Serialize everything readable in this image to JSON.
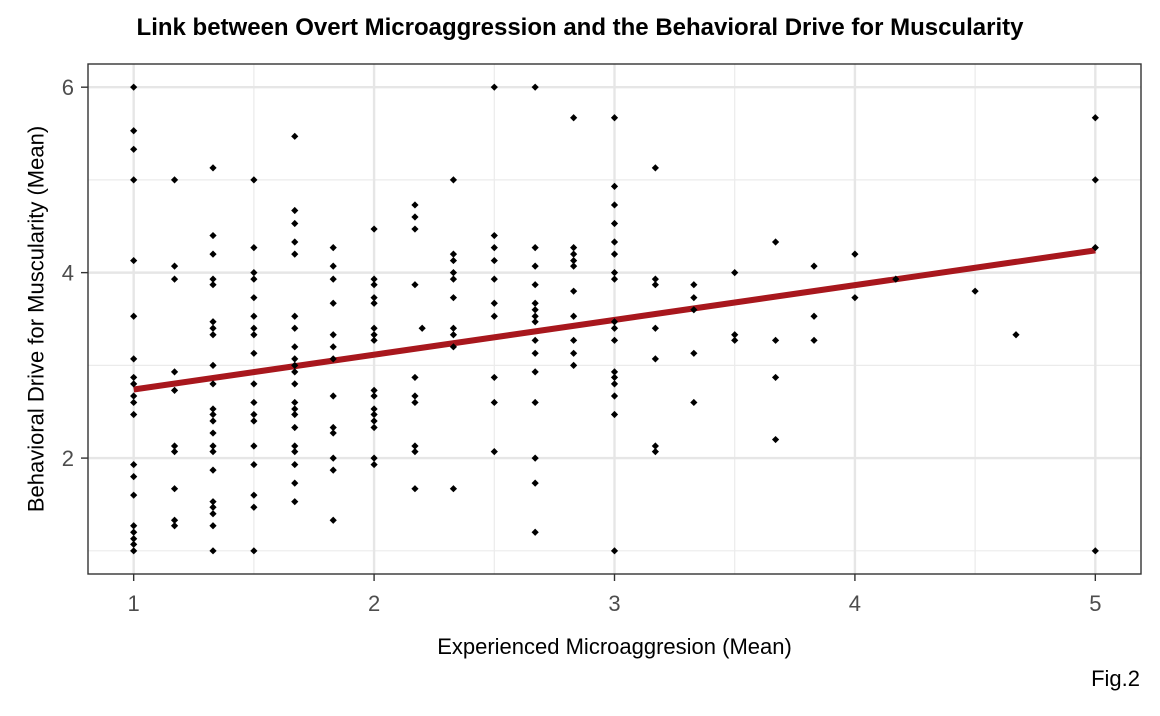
{
  "chart_data": {
    "type": "scatter",
    "title": "Link between Overt Microaggression and the Behavioral Drive for Muscularity",
    "xlabel": "Experienced Microaggresion (Mean)",
    "ylabel": "Behavioral Drive for Muscularity (Mean)",
    "caption": "Fig.2",
    "xlim": [
      0.81,
      5.19
    ],
    "ylim": [
      0.75,
      6.25
    ],
    "xticks": [
      1,
      2,
      3,
      4,
      5
    ],
    "yticks": [
      2,
      4,
      6
    ],
    "xtick_labels": [
      "1",
      "2",
      "3",
      "4",
      "5"
    ],
    "ytick_labels": [
      "2",
      "4",
      "6"
    ],
    "grid": true,
    "point_color": "#000000",
    "line_color": "#a8171d",
    "fit_line": {
      "x": [
        1,
        5
      ],
      "y": [
        2.74,
        4.24
      ]
    },
    "points": [
      [
        1,
        6
      ],
      [
        1,
        5.53
      ],
      [
        1,
        5.33
      ],
      [
        1,
        5
      ],
      [
        1,
        4.13
      ],
      [
        1,
        3.53
      ],
      [
        1,
        3.07
      ],
      [
        1,
        2.87
      ],
      [
        1,
        2.8
      ],
      [
        1,
        2.67
      ],
      [
        1,
        2.6
      ],
      [
        1,
        2.47
      ],
      [
        1,
        1.93
      ],
      [
        1,
        1.8
      ],
      [
        1,
        1.6
      ],
      [
        1,
        1.27
      ],
      [
        1,
        1.2
      ],
      [
        1,
        1.13
      ],
      [
        1,
        1.07
      ],
      [
        1,
        1
      ],
      [
        1.17,
        5
      ],
      [
        1.17,
        4.07
      ],
      [
        1.17,
        3.93
      ],
      [
        1.17,
        2.93
      ],
      [
        1.17,
        2.73
      ],
      [
        1.17,
        2.13
      ],
      [
        1.17,
        2.07
      ],
      [
        1.17,
        1.67
      ],
      [
        1.17,
        1.33
      ],
      [
        1.17,
        1.27
      ],
      [
        1.33,
        5.13
      ],
      [
        1.33,
        4.4
      ],
      [
        1.33,
        4.2
      ],
      [
        1.33,
        3.93
      ],
      [
        1.33,
        3.87
      ],
      [
        1.33,
        3.47
      ],
      [
        1.33,
        3.4
      ],
      [
        1.33,
        3.33
      ],
      [
        1.33,
        3
      ],
      [
        1.33,
        2.8
      ],
      [
        1.33,
        2.53
      ],
      [
        1.33,
        2.47
      ],
      [
        1.33,
        2.4
      ],
      [
        1.33,
        2.27
      ],
      [
        1.33,
        2.13
      ],
      [
        1.33,
        2.07
      ],
      [
        1.33,
        1.87
      ],
      [
        1.33,
        1.53
      ],
      [
        1.33,
        1.47
      ],
      [
        1.33,
        1.4
      ],
      [
        1.33,
        1.27
      ],
      [
        1.33,
        1
      ],
      [
        1.5,
        5
      ],
      [
        1.5,
        4.27
      ],
      [
        1.5,
        4
      ],
      [
        1.5,
        3.93
      ],
      [
        1.5,
        3.73
      ],
      [
        1.5,
        3.53
      ],
      [
        1.5,
        3.4
      ],
      [
        1.5,
        3.33
      ],
      [
        1.5,
        3.13
      ],
      [
        1.5,
        2.8
      ],
      [
        1.5,
        2.6
      ],
      [
        1.5,
        2.47
      ],
      [
        1.5,
        2.4
      ],
      [
        1.5,
        2.13
      ],
      [
        1.5,
        1.93
      ],
      [
        1.5,
        1.6
      ],
      [
        1.5,
        1.47
      ],
      [
        1.5,
        1
      ],
      [
        1.67,
        5.47
      ],
      [
        1.67,
        4.67
      ],
      [
        1.67,
        4.53
      ],
      [
        1.67,
        4.33
      ],
      [
        1.67,
        4.2
      ],
      [
        1.67,
        3.53
      ],
      [
        1.67,
        3.4
      ],
      [
        1.67,
        3.2
      ],
      [
        1.67,
        3.07
      ],
      [
        1.67,
        3
      ],
      [
        1.67,
        2.93
      ],
      [
        1.67,
        2.8
      ],
      [
        1.67,
        2.6
      ],
      [
        1.67,
        2.53
      ],
      [
        1.67,
        2.47
      ],
      [
        1.67,
        2.33
      ],
      [
        1.67,
        2.13
      ],
      [
        1.67,
        2.07
      ],
      [
        1.67,
        1.93
      ],
      [
        1.67,
        1.73
      ],
      [
        1.67,
        1.53
      ],
      [
        1.83,
        4.27
      ],
      [
        1.83,
        4.07
      ],
      [
        1.83,
        3.93
      ],
      [
        1.83,
        3.67
      ],
      [
        1.83,
        3.33
      ],
      [
        1.83,
        3.2
      ],
      [
        1.83,
        3.07
      ],
      [
        1.83,
        2.67
      ],
      [
        1.83,
        2.33
      ],
      [
        1.83,
        2.27
      ],
      [
        1.83,
        2
      ],
      [
        1.83,
        1.87
      ],
      [
        1.83,
        1.33
      ],
      [
        2,
        4.47
      ],
      [
        2,
        3.93
      ],
      [
        2,
        3.87
      ],
      [
        2,
        3.73
      ],
      [
        2,
        3.67
      ],
      [
        2,
        3.4
      ],
      [
        2,
        3.33
      ],
      [
        2,
        3.27
      ],
      [
        2,
        2.73
      ],
      [
        2,
        2.67
      ],
      [
        2,
        2.53
      ],
      [
        2,
        2.47
      ],
      [
        2,
        2.4
      ],
      [
        2,
        2.33
      ],
      [
        2,
        2
      ],
      [
        2,
        1.93
      ],
      [
        2.17,
        4.73
      ],
      [
        2.17,
        4.6
      ],
      [
        2.17,
        4.47
      ],
      [
        2.17,
        3.87
      ],
      [
        2.17,
        2.87
      ],
      [
        2.17,
        2.67
      ],
      [
        2.17,
        2.6
      ],
      [
        2.17,
        2.13
      ],
      [
        2.17,
        2.07
      ],
      [
        2.17,
        1.67
      ],
      [
        2.2,
        3.4
      ],
      [
        2.33,
        5
      ],
      [
        2.33,
        4.2
      ],
      [
        2.33,
        4.13
      ],
      [
        2.33,
        4
      ],
      [
        2.33,
        3.93
      ],
      [
        2.33,
        3.73
      ],
      [
        2.33,
        3.4
      ],
      [
        2.33,
        3.33
      ],
      [
        2.33,
        3.2
      ],
      [
        2.33,
        1.67
      ],
      [
        2.5,
        6
      ],
      [
        2.5,
        4.4
      ],
      [
        2.5,
        4.27
      ],
      [
        2.5,
        4.13
      ],
      [
        2.5,
        3.93
      ],
      [
        2.5,
        3.67
      ],
      [
        2.5,
        3.53
      ],
      [
        2.5,
        2.87
      ],
      [
        2.5,
        2.6
      ],
      [
        2.5,
        2.07
      ],
      [
        2.67,
        6
      ],
      [
        2.67,
        4.27
      ],
      [
        2.67,
        4.07
      ],
      [
        2.67,
        3.87
      ],
      [
        2.67,
        3.67
      ],
      [
        2.67,
        3.6
      ],
      [
        2.67,
        3.53
      ],
      [
        2.67,
        3.47
      ],
      [
        2.67,
        3.27
      ],
      [
        2.67,
        3.13
      ],
      [
        2.67,
        2.93
      ],
      [
        2.67,
        2.6
      ],
      [
        2.67,
        2
      ],
      [
        2.67,
        1.73
      ],
      [
        2.67,
        1.2
      ],
      [
        2.83,
        5.67
      ],
      [
        2.83,
        4.27
      ],
      [
        2.83,
        4.2
      ],
      [
        2.83,
        4.13
      ],
      [
        2.83,
        4.07
      ],
      [
        2.83,
        3.8
      ],
      [
        2.83,
        3.53
      ],
      [
        2.83,
        3.27
      ],
      [
        2.83,
        3.13
      ],
      [
        2.83,
        3
      ],
      [
        3,
        5.67
      ],
      [
        3,
        4.93
      ],
      [
        3,
        4.73
      ],
      [
        3,
        4.53
      ],
      [
        3,
        4.33
      ],
      [
        3,
        4.2
      ],
      [
        3,
        4
      ],
      [
        3,
        3.93
      ],
      [
        3,
        3.47
      ],
      [
        3,
        3.4
      ],
      [
        3,
        3.27
      ],
      [
        3,
        2.93
      ],
      [
        3,
        2.87
      ],
      [
        3,
        2.8
      ],
      [
        3,
        2.67
      ],
      [
        3,
        2.47
      ],
      [
        3,
        1
      ],
      [
        3.17,
        5.13
      ],
      [
        3.17,
        3.93
      ],
      [
        3.17,
        3.87
      ],
      [
        3.17,
        3.4
      ],
      [
        3.17,
        3.07
      ],
      [
        3.17,
        2.13
      ],
      [
        3.17,
        2.07
      ],
      [
        3.33,
        3.87
      ],
      [
        3.33,
        3.73
      ],
      [
        3.33,
        3.6
      ],
      [
        3.33,
        3.13
      ],
      [
        3.33,
        2.6
      ],
      [
        3.5,
        4
      ],
      [
        3.5,
        3.33
      ],
      [
        3.5,
        3.27
      ],
      [
        3.67,
        4.33
      ],
      [
        3.67,
        3.27
      ],
      [
        3.67,
        2.87
      ],
      [
        3.67,
        2.2
      ],
      [
        3.83,
        4.07
      ],
      [
        3.83,
        3.53
      ],
      [
        3.83,
        3.27
      ],
      [
        4,
        4.2
      ],
      [
        4,
        3.73
      ],
      [
        4.17,
        3.93
      ],
      [
        4.5,
        3.8
      ],
      [
        4.67,
        3.33
      ],
      [
        5,
        5.67
      ],
      [
        5,
        5
      ],
      [
        5,
        4.27
      ],
      [
        5,
        1
      ]
    ]
  }
}
